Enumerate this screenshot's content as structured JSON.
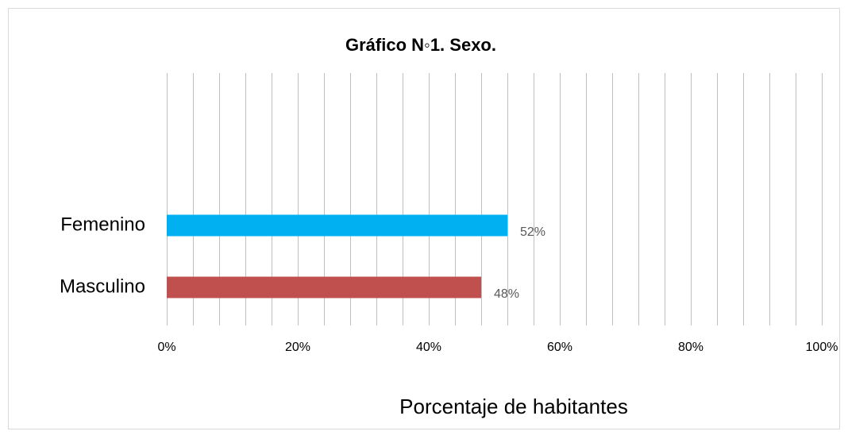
{
  "chart_data": {
    "type": "bar",
    "orientation": "horizontal",
    "title": "Gráfico N◦1. Sexo.",
    "categories": [
      "Femenino",
      "Masculino"
    ],
    "values": [
      52,
      48
    ],
    "value_labels": [
      "52%",
      "48%"
    ],
    "colors": [
      "#00b0f0",
      "#c0504d"
    ],
    "x_label": "Porcentaje de habitantes",
    "xlim": [
      0,
      100
    ],
    "xticks": [
      {
        "value": 0,
        "label": "0%"
      },
      {
        "value": 20,
        "label": "20%"
      },
      {
        "value": 40,
        "label": "40%"
      },
      {
        "value": 60,
        "label": "60%"
      },
      {
        "value": 80,
        "label": "80%"
      },
      {
        "value": 100,
        "label": "100%"
      }
    ],
    "xminor_ticks": [
      0,
      4,
      8,
      12,
      16,
      20,
      24,
      28,
      32,
      36,
      40,
      44,
      48,
      52,
      56,
      60,
      64,
      68,
      72,
      76,
      80,
      84,
      88,
      92,
      96,
      100
    ],
    "grid": true
  }
}
